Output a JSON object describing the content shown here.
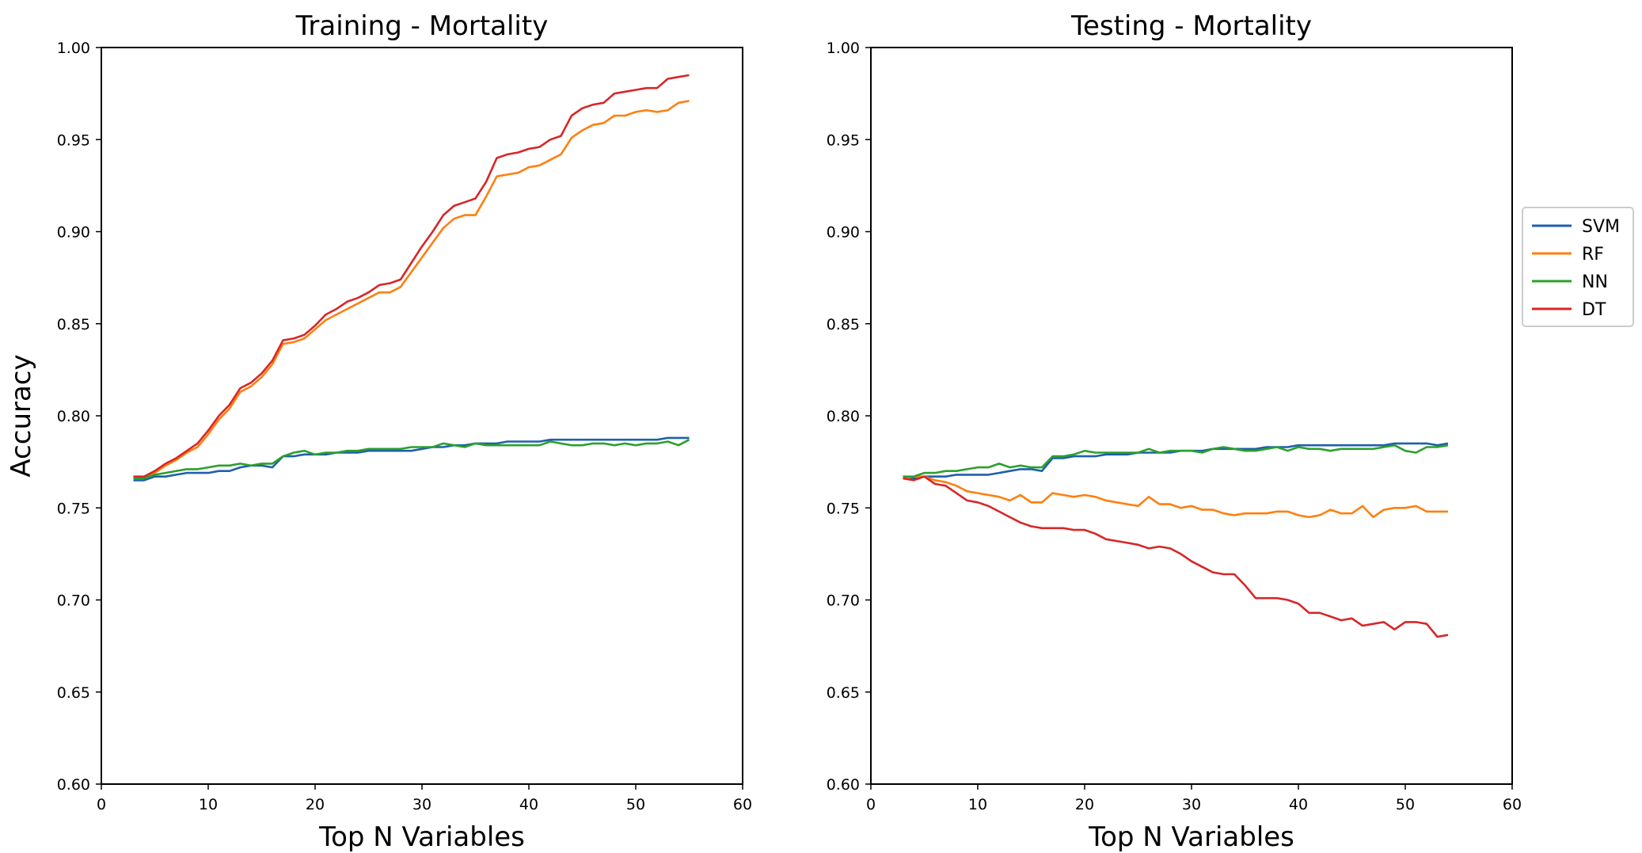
{
  "colors": {
    "SVM": "#1f5fad",
    "RF": "#ff7f0e",
    "NN": "#2ca02c",
    "DT": "#d62728"
  },
  "chart_data": [
    {
      "type": "line",
      "title": "Training - Mortality",
      "xlabel": "Top N Variables",
      "ylabel": "Accuracy",
      "xlim": [
        0,
        60
      ],
      "ylim": [
        0.6,
        1.0
      ],
      "xticks": [
        "0",
        "10",
        "20",
        "30",
        "40",
        "50",
        "60"
      ],
      "yticks": [
        "0.60",
        "0.65",
        "0.70",
        "0.75",
        "0.80",
        "0.85",
        "0.90",
        "0.95",
        "1.00"
      ],
      "grid": false,
      "x": [
        3,
        4,
        5,
        6,
        7,
        8,
        9,
        10,
        11,
        12,
        13,
        14,
        15,
        16,
        17,
        18,
        19,
        20,
        21,
        22,
        23,
        24,
        25,
        26,
        27,
        28,
        29,
        30,
        31,
        32,
        33,
        34,
        35,
        36,
        37,
        38,
        39,
        40,
        41,
        42,
        43,
        44,
        45,
        46,
        47,
        48,
        49,
        50,
        51,
        52,
        53,
        54,
        55
      ],
      "series": [
        {
          "name": "SVM",
          "values": [
            0.765,
            0.765,
            0.767,
            0.767,
            0.768,
            0.769,
            0.769,
            0.769,
            0.77,
            0.77,
            0.772,
            0.773,
            0.773,
            0.772,
            0.778,
            0.778,
            0.779,
            0.779,
            0.779,
            0.78,
            0.78,
            0.78,
            0.781,
            0.781,
            0.781,
            0.781,
            0.781,
            0.782,
            0.783,
            0.783,
            0.784,
            0.784,
            0.785,
            0.785,
            0.785,
            0.786,
            0.786,
            0.786,
            0.786,
            0.787,
            0.787,
            0.787,
            0.787,
            0.787,
            0.787,
            0.787,
            0.787,
            0.787,
            0.787,
            0.787,
            0.788,
            0.788,
            0.788
          ]
        },
        {
          "name": "RF",
          "values": [
            0.766,
            0.766,
            0.769,
            0.773,
            0.776,
            0.78,
            0.783,
            0.79,
            0.798,
            0.804,
            0.813,
            0.816,
            0.821,
            0.828,
            0.839,
            0.84,
            0.842,
            0.847,
            0.852,
            0.855,
            0.858,
            0.861,
            0.864,
            0.867,
            0.867,
            0.87,
            0.878,
            0.886,
            0.894,
            0.902,
            0.907,
            0.909,
            0.909,
            0.919,
            0.93,
            0.931,
            0.932,
            0.935,
            0.936,
            0.939,
            0.942,
            0.951,
            0.955,
            0.958,
            0.959,
            0.963,
            0.963,
            0.965,
            0.966,
            0.965,
            0.966,
            0.97,
            0.971
          ]
        },
        {
          "name": "NN",
          "values": [
            0.766,
            0.766,
            0.768,
            0.769,
            0.77,
            0.771,
            0.771,
            0.772,
            0.773,
            0.773,
            0.774,
            0.773,
            0.774,
            0.774,
            0.778,
            0.78,
            0.781,
            0.779,
            0.78,
            0.78,
            0.781,
            0.781,
            0.782,
            0.782,
            0.782,
            0.782,
            0.783,
            0.783,
            0.783,
            0.785,
            0.784,
            0.783,
            0.785,
            0.784,
            0.784,
            0.784,
            0.784,
            0.784,
            0.784,
            0.786,
            0.785,
            0.784,
            0.784,
            0.785,
            0.785,
            0.784,
            0.785,
            0.784,
            0.785,
            0.785,
            0.786,
            0.784,
            0.787
          ]
        },
        {
          "name": "DT",
          "values": [
            0.767,
            0.767,
            0.77,
            0.774,
            0.777,
            0.781,
            0.785,
            0.792,
            0.8,
            0.806,
            0.815,
            0.818,
            0.823,
            0.83,
            0.841,
            0.842,
            0.844,
            0.849,
            0.855,
            0.858,
            0.862,
            0.864,
            0.867,
            0.871,
            0.872,
            0.874,
            0.883,
            0.892,
            0.9,
            0.909,
            0.914,
            0.916,
            0.918,
            0.927,
            0.94,
            0.942,
            0.943,
            0.945,
            0.946,
            0.95,
            0.952,
            0.963,
            0.967,
            0.969,
            0.97,
            0.975,
            0.976,
            0.977,
            0.978,
            0.978,
            0.983,
            0.984,
            0.985
          ]
        }
      ]
    },
    {
      "type": "line",
      "title": "Testing - Mortality",
      "xlabel": "Top N Variables",
      "ylabel": "",
      "xlim": [
        0,
        60
      ],
      "ylim": [
        0.6,
        1.0
      ],
      "xticks": [
        "0",
        "10",
        "20",
        "30",
        "40",
        "50",
        "60"
      ],
      "yticks": [
        "0.60",
        "0.65",
        "0.70",
        "0.75",
        "0.80",
        "0.85",
        "0.90",
        "0.95",
        "1.00"
      ],
      "grid": false,
      "legend": "outside-right",
      "x": [
        3,
        4,
        5,
        6,
        7,
        8,
        9,
        10,
        11,
        12,
        13,
        14,
        15,
        16,
        17,
        18,
        19,
        20,
        21,
        22,
        23,
        24,
        25,
        26,
        27,
        28,
        29,
        30,
        31,
        32,
        33,
        34,
        35,
        36,
        37,
        38,
        39,
        40,
        41,
        42,
        43,
        44,
        45,
        46,
        47,
        48,
        49,
        50,
        51,
        52,
        53,
        54
      ],
      "series": [
        {
          "name": "SVM",
          "values": [
            0.766,
            0.766,
            0.767,
            0.767,
            0.767,
            0.768,
            0.768,
            0.768,
            0.768,
            0.769,
            0.77,
            0.771,
            0.771,
            0.77,
            0.777,
            0.777,
            0.778,
            0.778,
            0.778,
            0.779,
            0.779,
            0.779,
            0.78,
            0.78,
            0.78,
            0.78,
            0.781,
            0.781,
            0.781,
            0.782,
            0.782,
            0.782,
            0.782,
            0.782,
            0.783,
            0.783,
            0.783,
            0.784,
            0.784,
            0.784,
            0.784,
            0.784,
            0.784,
            0.784,
            0.784,
            0.784,
            0.785,
            0.785,
            0.785,
            0.785,
            0.784,
            0.785
          ]
        },
        {
          "name": "RF",
          "values": [
            0.766,
            0.767,
            0.767,
            0.765,
            0.764,
            0.762,
            0.759,
            0.758,
            0.757,
            0.756,
            0.754,
            0.757,
            0.753,
            0.753,
            0.758,
            0.757,
            0.756,
            0.757,
            0.756,
            0.754,
            0.753,
            0.752,
            0.751,
            0.756,
            0.752,
            0.752,
            0.75,
            0.751,
            0.749,
            0.749,
            0.747,
            0.746,
            0.747,
            0.747,
            0.747,
            0.748,
            0.748,
            0.746,
            0.745,
            0.746,
            0.749,
            0.747,
            0.747,
            0.751,
            0.745,
            0.749,
            0.75,
            0.75,
            0.751,
            0.748,
            0.748,
            0.748
          ]
        },
        {
          "name": "NN",
          "values": [
            0.767,
            0.767,
            0.769,
            0.769,
            0.77,
            0.77,
            0.771,
            0.772,
            0.772,
            0.774,
            0.772,
            0.773,
            0.772,
            0.772,
            0.778,
            0.778,
            0.779,
            0.781,
            0.78,
            0.78,
            0.78,
            0.78,
            0.78,
            0.782,
            0.78,
            0.781,
            0.781,
            0.781,
            0.78,
            0.782,
            0.783,
            0.782,
            0.781,
            0.781,
            0.782,
            0.783,
            0.781,
            0.783,
            0.782,
            0.782,
            0.781,
            0.782,
            0.782,
            0.782,
            0.782,
            0.783,
            0.784,
            0.781,
            0.78,
            0.783,
            0.783,
            0.784
          ]
        },
        {
          "name": "DT",
          "values": [
            0.766,
            0.765,
            0.767,
            0.763,
            0.762,
            0.758,
            0.754,
            0.753,
            0.751,
            0.748,
            0.745,
            0.742,
            0.74,
            0.739,
            0.739,
            0.739,
            0.738,
            0.738,
            0.736,
            0.733,
            0.732,
            0.731,
            0.73,
            0.728,
            0.729,
            0.728,
            0.725,
            0.721,
            0.718,
            0.715,
            0.714,
            0.714,
            0.708,
            0.701,
            0.701,
            0.701,
            0.7,
            0.698,
            0.693,
            0.693,
            0.691,
            0.689,
            0.69,
            0.686,
            0.687,
            0.688,
            0.684,
            0.688,
            0.688,
            0.687,
            0.68,
            0.681
          ]
        }
      ]
    }
  ]
}
